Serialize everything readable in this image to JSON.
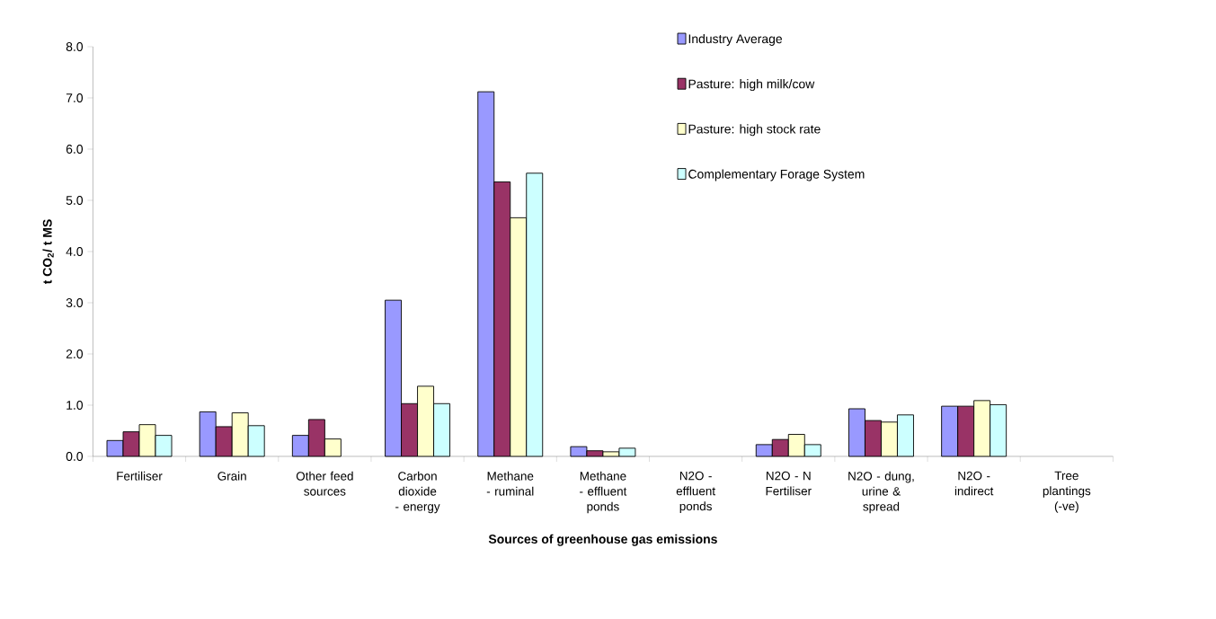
{
  "chart_data": {
    "type": "bar",
    "xlabel": "Sources of greenhouse gas emissions",
    "ylabel": "**t CO$_{2}$/ t MS**",
    "categories": [
      "Fertiliser",
      "Grain",
      "Other feed sources",
      "Carbon dioxide - energy",
      "Methane - ruminal",
      "Methane - effluent ponds",
      "N2O - effluent ponds",
      "N2O - N Fertiliser",
      "N2O - dung, urine & spread",
      "N2O - indirect",
      "Tree plantings (-ve)"
    ],
    "series": [
      {
        "name": "Industry Average",
        "color": "#9999ff",
        "values": [
          0.31,
          0.87,
          0.41,
          3.05,
          7.12,
          0.19,
          null,
          0.23,
          0.93,
          0.98,
          null
        ]
      },
      {
        "name": "Pasture: high milk/cow",
        "color": "#993366",
        "values": [
          0.48,
          0.58,
          0.72,
          1.03,
          5.36,
          0.11,
          null,
          0.33,
          0.7,
          0.98,
          null
        ]
      },
      {
        "name": "Pasture: high stock rate",
        "color": "#ffffcc",
        "values": [
          0.62,
          0.85,
          0.34,
          1.37,
          4.66,
          0.09,
          null,
          0.43,
          0.67,
          1.09,
          null
        ]
      },
      {
        "name": "Complementary Forage System",
        "color": "#ccffff",
        "values": [
          0.41,
          0.6,
          null,
          1.03,
          5.53,
          0.16,
          null,
          0.23,
          0.81,
          1.01,
          null
        ]
      }
    ],
    "ylim": [
      0,
      8
    ],
    "yticks": [
      {
        "value": 0,
        "label": "0.0"
      },
      {
        "value": 1,
        "label": "1.0"
      },
      {
        "value": 2,
        "label": "2.0"
      },
      {
        "value": 3,
        "label": "3.0"
      },
      {
        "value": 4,
        "label": "4.0"
      },
      {
        "value": 5,
        "label": "5.0"
      },
      {
        "value": 6,
        "label": "6.0"
      },
      {
        "value": 7,
        "label": "7.0"
      },
      {
        "value": 8,
        "label": "8.0"
      }
    ],
    "grid": false,
    "legend": "top right"
  }
}
